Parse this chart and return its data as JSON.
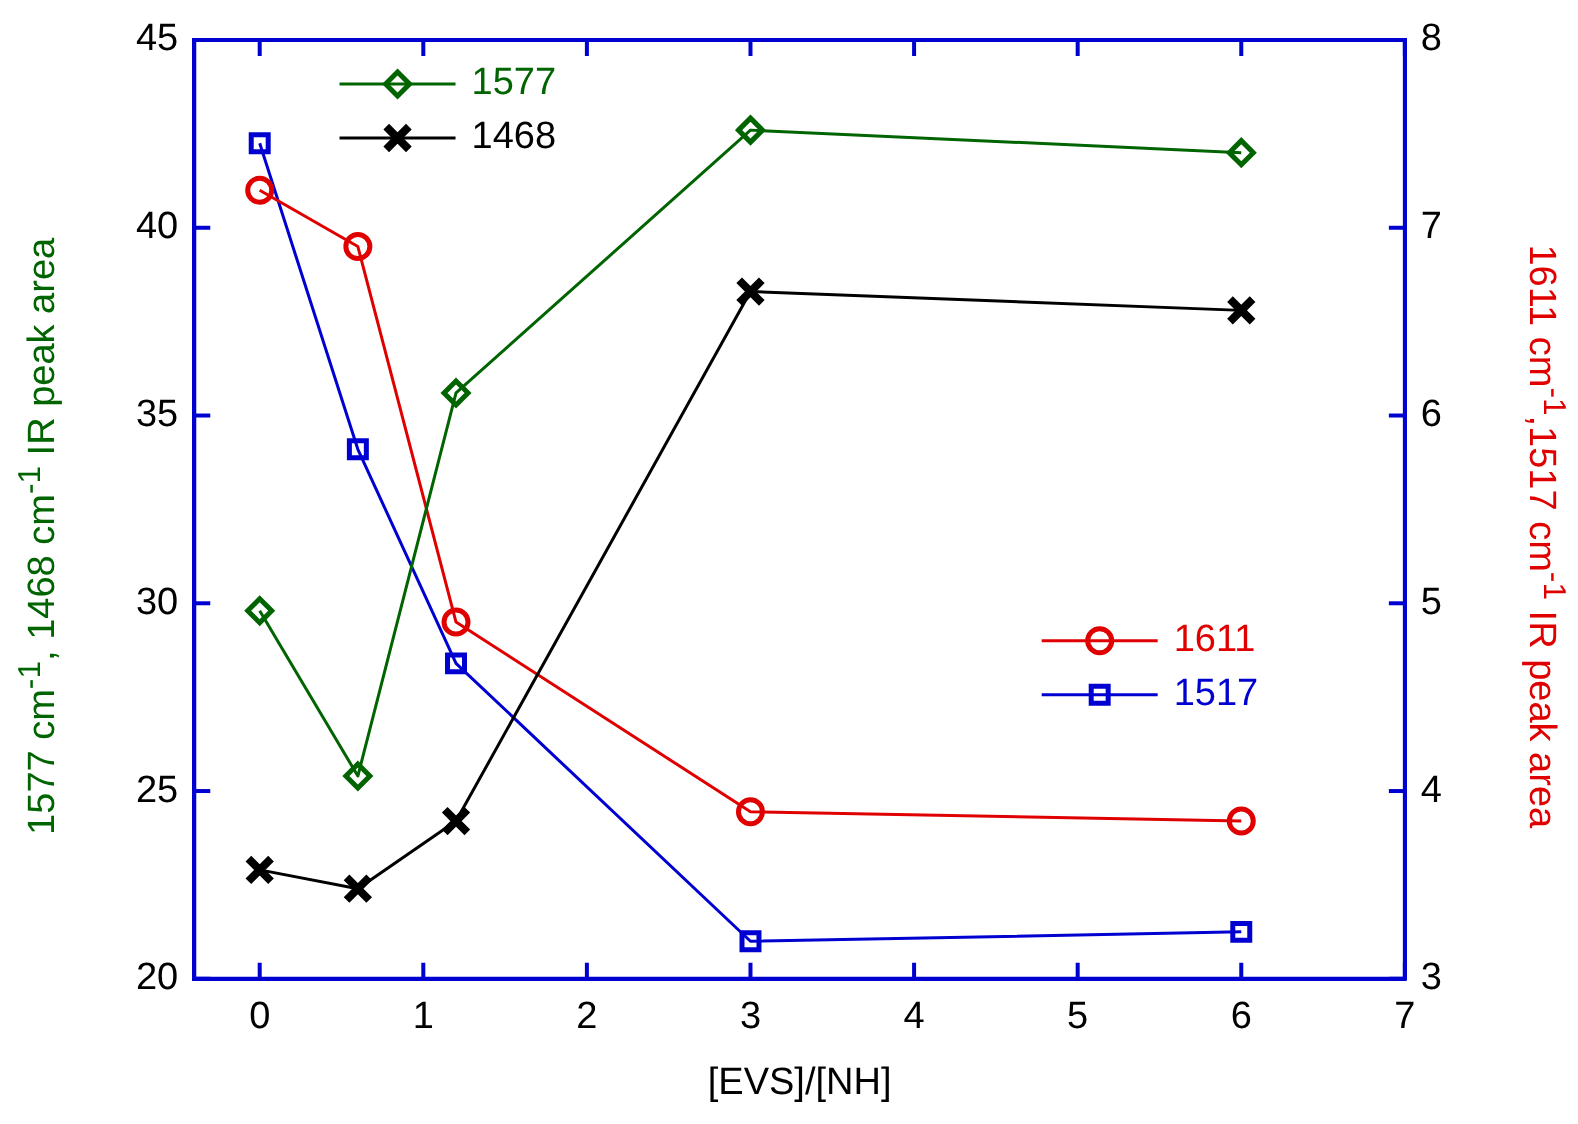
{
  "chart_data": {
    "type": "line",
    "xlabel": "[EVS]/[NH]",
    "ylabel": "1577 cm$^{-1}$, 1468 cm$^{-1}$ IR peak area",
    "y2label": "1611 cm$^{-1}$,1517 cm$^{-1}$ IR peak area",
    "x": [
      0,
      0.6,
      1.2,
      3,
      6
    ],
    "xlim": [
      -0.4,
      7
    ],
    "xticks": [
      0,
      1,
      2,
      3,
      4,
      5,
      6,
      7
    ],
    "ylim": [
      20,
      45
    ],
    "yticks": [
      20,
      25,
      30,
      35,
      40,
      45
    ],
    "y2lim": [
      3,
      8
    ],
    "y2ticks": [
      3,
      4,
      5,
      6,
      7,
      8
    ],
    "legend": "top left",
    "grid": false,
    "series": [
      {
        "name": "1577",
        "color": "#006400",
        "marker": "diamond",
        "values": [
          29.8,
          25.4,
          35.6,
          42.6,
          42.0
        ]
      },
      {
        "name": "1468",
        "color": "#000000",
        "marker": "cross",
        "values": [
          22.9,
          22.4,
          24.2,
          38.3,
          37.8
        ]
      },
      {
        "name": "1611",
        "color": "#e00000",
        "marker": "circle",
        "axis": "y2",
        "values": [
          7.2,
          6.9,
          4.9,
          3.89,
          3.84
        ]
      },
      {
        "name": "1517",
        "color": "#0000d0",
        "marker": "square",
        "axis": "y2",
        "values": [
          7.45,
          5.82,
          4.68,
          3.2,
          3.25
        ]
      }
    ]
  }
}
